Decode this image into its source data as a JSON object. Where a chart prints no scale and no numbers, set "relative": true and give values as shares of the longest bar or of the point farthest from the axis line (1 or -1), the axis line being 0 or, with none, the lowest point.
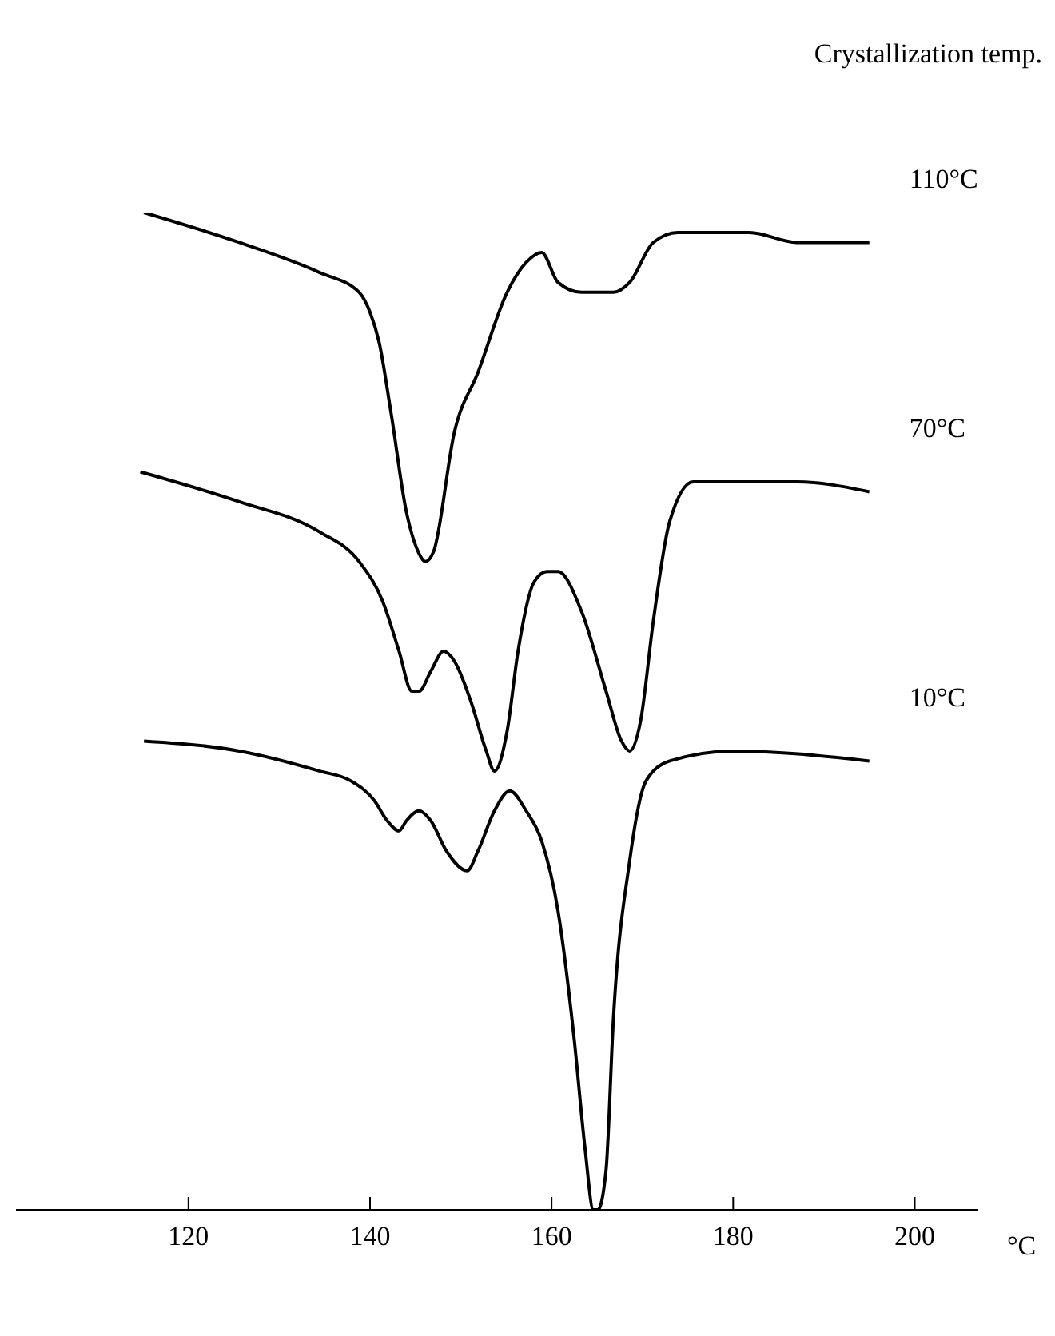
{
  "chart_data": {
    "type": "line",
    "relative": true,
    "legend_title": "Crystallization temp.",
    "xlabel": "°C",
    "xlim": [
      101,
      207
    ],
    "xticks": [
      120,
      140,
      160,
      180,
      200
    ],
    "grid": false,
    "tick_labels": "x",
    "marker": "none",
    "line_style": "solid",
    "series": [
      {
        "name": "110°C",
        "color": "#000000",
        "x": [
          115.1,
          125.6,
          134.4,
          138.8,
          140,
          141,
          142.3,
          144,
          145.3,
          146.1,
          147,
          149.3,
          151.9,
          155.1,
          157.2,
          158.9,
          160.7,
          163.3,
          166.8,
          168.6,
          171.2,
          173.9,
          181.8,
          187,
          195
        ],
        "values": [
          1.0,
          0.97,
          0.94,
          0.92,
          0.9,
          0.87,
          0.8,
          0.7,
          0.66,
          0.65,
          0.66,
          0.78,
          0.84,
          0.92,
          0.95,
          0.96,
          0.93,
          0.92,
          0.92,
          0.93,
          0.97,
          0.98,
          0.98,
          0.97,
          0.97
        ]
      },
      {
        "name": "70°C",
        "color": "#000000",
        "x": [
          114.7,
          125.6,
          134.4,
          138.8,
          141.4,
          143.2,
          144.6,
          145.4,
          146.7,
          148.1,
          149.3,
          151.1,
          152.8,
          153.7,
          155.1,
          156.3,
          158.1,
          159.5,
          160.7,
          163.3,
          166,
          167.7,
          168.6,
          169.8,
          171.2,
          173,
          175.6,
          180,
          187,
          195
        ],
        "values": [
          0.74,
          0.71,
          0.68,
          0.65,
          0.61,
          0.56,
          0.52,
          0.52,
          0.54,
          0.56,
          0.55,
          0.51,
          0.46,
          0.44,
          0.48,
          0.56,
          0.63,
          0.64,
          0.64,
          0.6,
          0.52,
          0.47,
          0.46,
          0.49,
          0.59,
          0.69,
          0.73,
          0.73,
          0.73,
          0.72
        ]
      },
      {
        "name": "10°C",
        "color": "#000000",
        "x": [
          115.1,
          125.6,
          134.4,
          137.9,
          140.5,
          141.9,
          143.2,
          144,
          145.4,
          146.7,
          148.4,
          150.7,
          151.9,
          153.7,
          155.4,
          157.2,
          158.9,
          160.7,
          162.5,
          163.7,
          164.6,
          165.1,
          166,
          166.8,
          168.6,
          170.4,
          173,
          180,
          195
        ],
        "values": [
          0.47,
          0.46,
          0.44,
          0.43,
          0.41,
          0.39,
          0.38,
          0.39,
          0.4,
          0.39,
          0.36,
          0.34,
          0.36,
          0.4,
          0.42,
          0.4,
          0.37,
          0.3,
          0.17,
          0.06,
          0.0,
          0.0,
          0.04,
          0.19,
          0.35,
          0.43,
          0.45,
          0.46,
          0.45
        ]
      }
    ]
  }
}
